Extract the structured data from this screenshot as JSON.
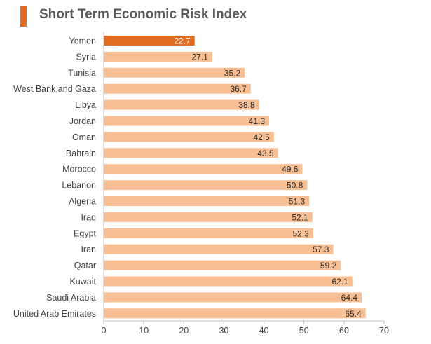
{
  "title": "Short Term Economic Risk Index",
  "colors": {
    "accent": "#e36c1e",
    "highlight_bar": "#e36c1e",
    "bar": "#f9bf94",
    "axis": "#bfbfbf",
    "label_text": "#404040",
    "highlight_value_text": "#ffffff",
    "value_text": "#262626"
  },
  "chart_data": {
    "type": "bar",
    "orientation": "horizontal",
    "title": "Short Term Economic Risk Index",
    "categories": [
      "Yemen",
      "Syria",
      "Tunisia",
      "West Bank and Gaza",
      "Libya",
      "Jordan",
      "Oman",
      "Bahrain",
      "Morocco",
      "Lebanon",
      "Algeria",
      "Iraq",
      "Egypt",
      "Iran",
      "Qatar",
      "Kuwait",
      "Saudi Arabia",
      "United Arab Emirates"
    ],
    "values": [
      22.7,
      27.1,
      35.2,
      36.7,
      38.8,
      41.3,
      42.5,
      43.5,
      49.6,
      50.8,
      51.3,
      52.1,
      52.3,
      57.3,
      59.2,
      62.1,
      64.4,
      65.4
    ],
    "highlight_category": "Yemen",
    "xlim": [
      0,
      70
    ],
    "xticks": [
      0,
      10,
      20,
      30,
      40,
      50,
      60,
      70
    ],
    "xlabel": "",
    "ylabel": "",
    "grid": false,
    "legend": "none"
  }
}
